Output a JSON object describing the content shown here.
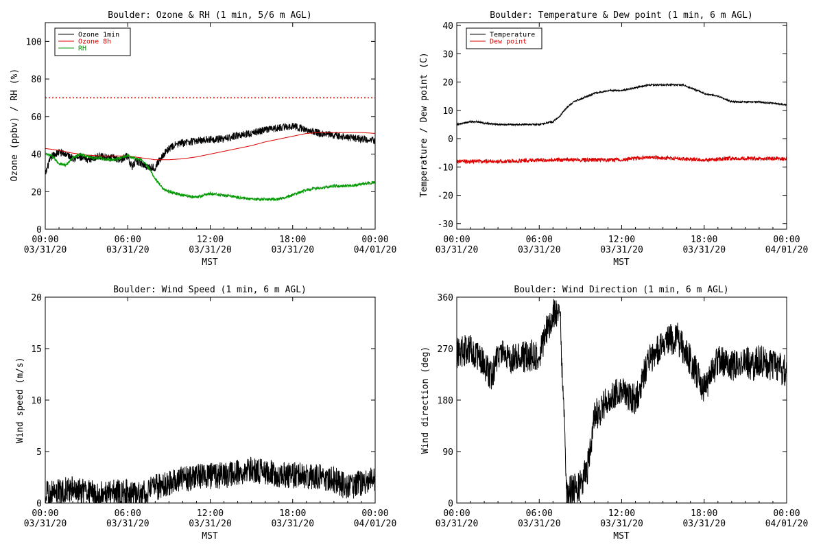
{
  "chart_data": [
    {
      "type": "line",
      "title": "Boulder: Ozone & RH (1 min, 5/6 m AGL)",
      "xlabel": "MST",
      "ylabel": "Ozone (ppbv) / RH (%)",
      "ylim": [
        0,
        110
      ],
      "yticks": [
        0,
        20,
        40,
        60,
        80,
        100
      ],
      "xticks": [
        [
          "00:00",
          "03/31/20"
        ],
        [
          "06:00",
          "03/31/20"
        ],
        [
          "12:00",
          "03/31/20"
        ],
        [
          "18:00",
          "03/31/20"
        ],
        [
          "00:00",
          "04/01/20"
        ]
      ],
      "reference_line": {
        "y": 70,
        "color": "#dd0000",
        "style": "dotted"
      },
      "legend": "top-left",
      "series": [
        {
          "name": "Ozone 1min",
          "color": "#000000",
          "noise": 2.0,
          "x": [
            0,
            0.25,
            0.5,
            1,
            1.5,
            2,
            2.5,
            3,
            3.5,
            4,
            4.5,
            5,
            5.5,
            6,
            6.3,
            6.6,
            7,
            7.5,
            8,
            8.5,
            9,
            9.5,
            10,
            11,
            12,
            13,
            14,
            15,
            16,
            17,
            18,
            19,
            20,
            21,
            22,
            23,
            24
          ],
          "y": [
            29,
            35,
            39,
            41,
            40,
            38,
            38,
            37,
            38,
            39,
            38,
            38,
            37,
            39,
            33,
            36,
            35,
            33,
            33,
            39,
            43,
            45,
            46,
            47,
            48,
            48,
            50,
            51,
            53,
            54,
            55,
            53,
            51,
            50,
            49,
            48,
            47
          ]
        },
        {
          "name": "Ozone 8h",
          "color": "#dd0000",
          "noise": 0,
          "x": [
            0,
            1,
            2,
            3,
            4,
            5,
            6,
            7,
            8,
            9,
            10,
            11,
            12,
            13,
            14,
            15,
            16,
            17,
            18,
            19,
            20,
            21,
            22,
            23,
            24
          ],
          "y": [
            43,
            42,
            40.5,
            39.5,
            39,
            39,
            39,
            38,
            37,
            37,
            37.5,
            38.5,
            40,
            41.5,
            43,
            44.5,
            46.5,
            48,
            49.5,
            51,
            51.5,
            51.5,
            51.5,
            51.5,
            51
          ]
        },
        {
          "name": "RH",
          "color": "#009900",
          "noise": 0.8,
          "x": [
            0,
            0.5,
            1,
            1.5,
            2,
            2.5,
            3,
            3.5,
            4,
            4.5,
            5,
            5.5,
            6,
            6.5,
            7,
            7.5,
            8,
            8.5,
            9,
            9.5,
            10,
            11,
            12,
            13,
            14,
            15,
            16,
            17,
            18,
            19,
            20,
            21,
            22,
            23,
            24
          ],
          "y": [
            40,
            39,
            35,
            34,
            38,
            40,
            39,
            38,
            38,
            37,
            37,
            38,
            39,
            38,
            37,
            33,
            27,
            22,
            20,
            19,
            18,
            17,
            19,
            18,
            17,
            16,
            16,
            16,
            18,
            21,
            22,
            23,
            23,
            24,
            25
          ]
        }
      ]
    },
    {
      "type": "line",
      "title": "Boulder: Temperature & Dew point (1 min, 6 m AGL)",
      "xlabel": "MST",
      "ylabel": "Temperature / Dew point (C)",
      "ylim": [
        -32,
        41
      ],
      "yticks": [
        -30,
        -20,
        -10,
        0,
        10,
        20,
        30,
        40
      ],
      "xticks": [
        [
          "00:00",
          "03/31/20"
        ],
        [
          "06:00",
          "03/31/20"
        ],
        [
          "12:00",
          "03/31/20"
        ],
        [
          "18:00",
          "03/31/20"
        ],
        [
          "00:00",
          "04/01/20"
        ]
      ],
      "legend": "top-left",
      "series": [
        {
          "name": "Temperature",
          "color": "#000000",
          "noise": 0.3,
          "x": [
            0,
            0.5,
            1,
            1.5,
            2,
            3,
            4,
            5,
            6,
            6.5,
            7,
            7.5,
            8,
            8.5,
            9,
            10,
            11,
            12,
            13,
            14,
            15,
            16,
            16.5,
            17,
            18,
            19,
            20,
            21,
            22,
            23,
            24
          ],
          "y": [
            5,
            5.5,
            6,
            6,
            5.5,
            5,
            5,
            5,
            5,
            5.5,
            6,
            8,
            11,
            13,
            14,
            16,
            17,
            17,
            18,
            19,
            19,
            19,
            19,
            18,
            16,
            15,
            13,
            13,
            13,
            12.5,
            12
          ]
        },
        {
          "name": "Dew point",
          "color": "#dd0000",
          "noise": 0.7,
          "x": [
            0,
            2,
            4,
            6,
            8,
            10,
            12,
            13,
            14,
            16,
            18,
            20,
            22,
            24
          ],
          "y": [
            -8,
            -8,
            -8,
            -7.5,
            -7.5,
            -7.5,
            -7.5,
            -7,
            -6.5,
            -7,
            -7.5,
            -7,
            -7,
            -7
          ]
        }
      ]
    },
    {
      "type": "line",
      "title": "Boulder: Wind Speed (1 min, 6 m AGL)",
      "xlabel": "MST",
      "ylabel": "Wind speed (m/s)",
      "ylim": [
        0,
        20
      ],
      "yticks": [
        0,
        5,
        10,
        15,
        20
      ],
      "xticks": [
        [
          "00:00",
          "03/31/20"
        ],
        [
          "06:00",
          "03/31/20"
        ],
        [
          "12:00",
          "03/31/20"
        ],
        [
          "18:00",
          "03/31/20"
        ],
        [
          "00:00",
          "04/01/20"
        ]
      ],
      "series": [
        {
          "name": "",
          "color": "#000000",
          "noise": 1.3,
          "floor": 0,
          "x": [
            0,
            1,
            2,
            3,
            4,
            5,
            6,
            7,
            8,
            9,
            10,
            11,
            12,
            13,
            14,
            15,
            16,
            17,
            18,
            19,
            20,
            21,
            22,
            23,
            24
          ],
          "y": [
            0.8,
            1.2,
            1.3,
            1.0,
            0.8,
            1.0,
            1.0,
            0.8,
            1.5,
            2.0,
            2.3,
            2.5,
            2.6,
            2.7,
            3.0,
            3.2,
            3.0,
            2.8,
            2.7,
            2.6,
            2.5,
            2.3,
            1.5,
            2.0,
            2.5
          ]
        }
      ]
    },
    {
      "type": "line",
      "title": "Boulder: Wind Direction (1 min, 6 m AGL)",
      "xlabel": "MST",
      "ylabel": "Wind direction (deg)",
      "ylim": [
        0,
        360
      ],
      "yticks": [
        0,
        90,
        180,
        270,
        360
      ],
      "xticks": [
        [
          "00:00",
          "03/31/20"
        ],
        [
          "06:00",
          "03/31/20"
        ],
        [
          "12:00",
          "03/31/20"
        ],
        [
          "18:00",
          "03/31/20"
        ],
        [
          "00:00",
          "04/01/20"
        ]
      ],
      "series": [
        {
          "name": "",
          "color": "#000000",
          "noise": 28,
          "floor": 0,
          "ceiling": 360,
          "x": [
            0,
            1,
            2,
            2.5,
            3,
            4,
            5,
            6,
            6.5,
            7,
            7.5,
            8,
            9,
            9.5,
            10,
            11,
            12,
            13,
            14,
            15,
            16,
            17,
            18,
            19,
            20,
            21,
            21.5,
            22,
            23,
            24
          ],
          "y": [
            260,
            270,
            240,
            220,
            260,
            250,
            255,
            260,
            300,
            330,
            340,
            20,
            30,
            60,
            150,
            180,
            200,
            180,
            250,
            280,
            290,
            250,
            200,
            250,
            240,
            250,
            240,
            250,
            240,
            230
          ]
        }
      ]
    }
  ]
}
